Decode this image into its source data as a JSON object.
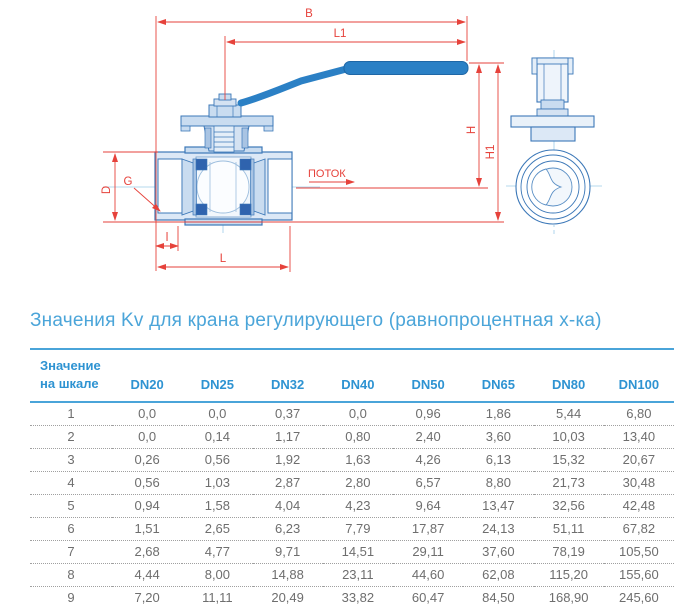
{
  "drawing": {
    "dimension_labels": {
      "B": "B",
      "L1": "L1",
      "H": "H",
      "H1": "H1",
      "D": "D",
      "G": "G",
      "l": "l",
      "L": "L"
    },
    "flow_label": "ПОТОК"
  },
  "section_title": "Значения Kv для крана регулирующего (равнопроцентная х-ка)",
  "table": {
    "scale_header_line1": "Значение",
    "scale_header_line2": "на шкале",
    "columns": [
      "DN20",
      "DN25",
      "DN32",
      "DN40",
      "DN50",
      "DN65",
      "DN80",
      "DN100"
    ],
    "rows": [
      {
        "scale": "1",
        "values": [
          "0,0",
          "0,0",
          "0,37",
          "0,0",
          "0,96",
          "1,86",
          "5,44",
          "6,80"
        ]
      },
      {
        "scale": "2",
        "values": [
          "0,0",
          "0,14",
          "1,17",
          "0,80",
          "2,40",
          "3,60",
          "10,03",
          "13,40"
        ]
      },
      {
        "scale": "3",
        "values": [
          "0,26",
          "0,56",
          "1,92",
          "1,63",
          "4,26",
          "6,13",
          "15,32",
          "20,67"
        ]
      },
      {
        "scale": "4",
        "values": [
          "0,56",
          "1,03",
          "2,87",
          "2,80",
          "6,57",
          "8,80",
          "21,73",
          "30,48"
        ]
      },
      {
        "scale": "5",
        "values": [
          "0,94",
          "1,58",
          "4,04",
          "4,23",
          "9,64",
          "13,47",
          "32,56",
          "42,48"
        ]
      },
      {
        "scale": "6",
        "values": [
          "1,51",
          "2,65",
          "6,23",
          "7,79",
          "17,87",
          "24,13",
          "51,11",
          "67,82"
        ]
      },
      {
        "scale": "7",
        "values": [
          "2,68",
          "4,77",
          "9,71",
          "14,51",
          "29,11",
          "37,60",
          "78,19",
          "105,50"
        ]
      },
      {
        "scale": "8",
        "values": [
          "4,44",
          "8,00",
          "14,88",
          "23,11",
          "44,60",
          "62,08",
          "115,20",
          "155,60"
        ]
      },
      {
        "scale": "9",
        "values": [
          "7,20",
          "11,11",
          "20,49",
          "33,82",
          "60,47",
          "84,50",
          "168,90",
          "245,60"
        ]
      }
    ]
  },
  "colors": {
    "accent_blue": "#4aa4d9",
    "header_blue": "#2e93d2",
    "dimension_red": "#e6423b",
    "drawing_blue": "#3c78b8",
    "handle_blue": "#2b80c5",
    "text_gray": "#6e6e6e"
  }
}
